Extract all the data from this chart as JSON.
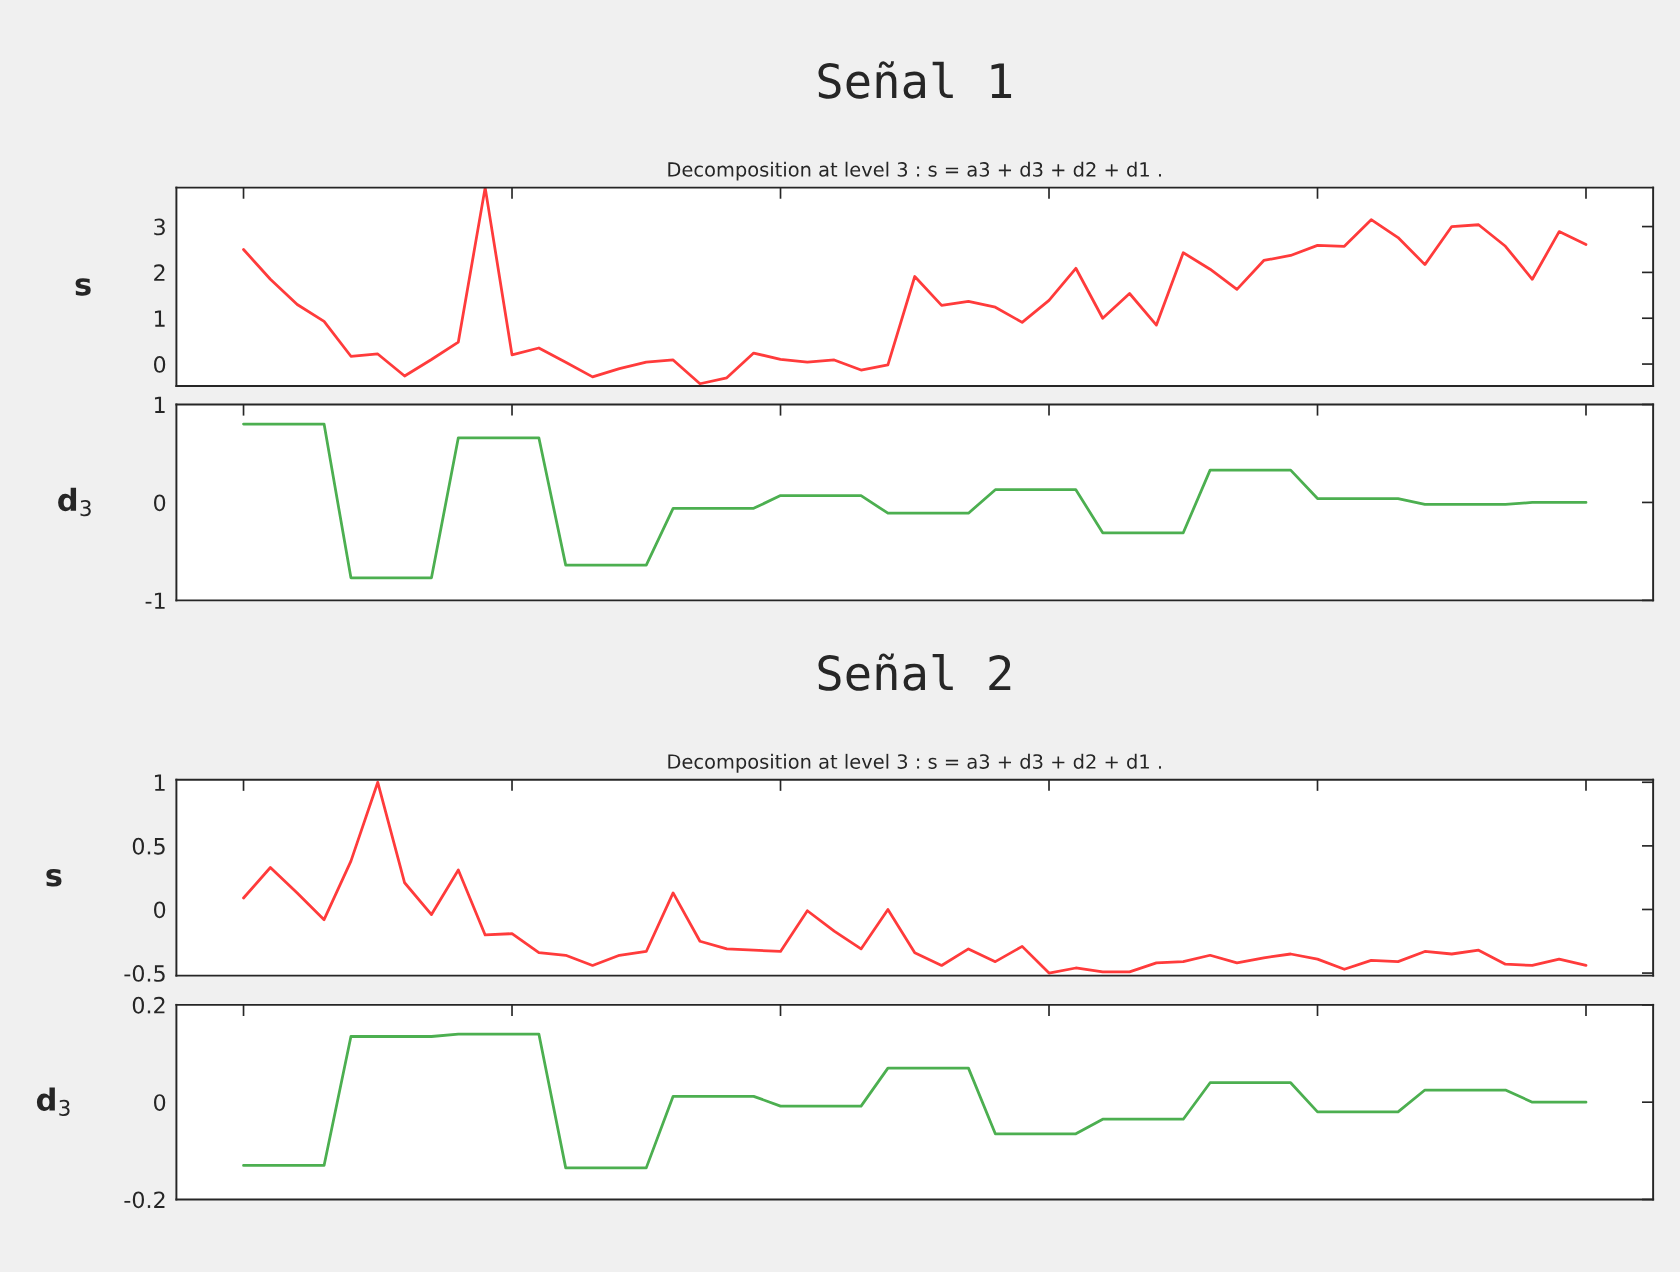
{
  "chart_data": [
    {
      "type": "line",
      "title": "Señal 1",
      "subtitle": "Decomposition at level 3 : s = a3 + d3 + d2 + d1 .",
      "ylabel": "s",
      "categories": [
        null,
        null,
        null,
        null,
        null,
        null,
        null,
        null,
        null,
        null,
        null,
        null,
        null,
        null,
        null,
        null,
        null,
        null,
        null,
        null,
        null,
        null,
        null,
        null,
        null,
        null,
        null,
        null,
        null,
        null,
        null,
        null,
        null,
        null,
        null,
        null,
        null,
        null,
        null,
        null,
        null,
        null,
        null,
        null,
        null,
        null,
        null,
        null,
        null,
        null,
        null
      ],
      "series": [
        {
          "color": "#ff3b3b",
          "values": [
            2.5,
            1.85,
            1.3,
            0.93,
            0.17,
            0.22,
            -0.26,
            0.1,
            0.48,
            3.85,
            0.2,
            0.35,
            0.04,
            -0.28,
            -0.1,
            0.04,
            0.09,
            -0.43,
            -0.3,
            0.24,
            0.1,
            0.04,
            0.09,
            -0.13,
            -0.02,
            1.91,
            1.28,
            1.37,
            1.24,
            0.91,
            1.39,
            2.09,
            1.0,
            1.54,
            0.85,
            2.43,
            2.07,
            1.63,
            2.26,
            2.37,
            2.59,
            2.57,
            3.15,
            2.76,
            2.17,
            3.0,
            3.04,
            2.57,
            1.85,
            2.89,
            2.61
          ]
        }
      ],
      "ylim": [
        -0.48,
        3.85
      ],
      "yticks": [
        0,
        1,
        2,
        3
      ],
      "tick_labels": "y",
      "grid": false,
      "legend": false
    },
    {
      "type": "line",
      "ylabel": "d$_{3}$",
      "categories": [
        null,
        null,
        null,
        null,
        null,
        null,
        null,
        null,
        null,
        null,
        null,
        null,
        null,
        null,
        null,
        null,
        null,
        null,
        null,
        null,
        null,
        null,
        null,
        null,
        null,
        null,
        null,
        null,
        null,
        null,
        null,
        null,
        null,
        null,
        null,
        null,
        null,
        null,
        null,
        null,
        null,
        null,
        null,
        null,
        null,
        null,
        null,
        null,
        null,
        null,
        null
      ],
      "series": [
        {
          "color": "#4caf50",
          "values": [
            0.8,
            0.8,
            0.8,
            0.8,
            -0.77,
            -0.77,
            -0.77,
            -0.77,
            0.66,
            0.66,
            0.66,
            0.66,
            -0.64,
            -0.64,
            -0.64,
            -0.64,
            -0.06,
            -0.06,
            -0.06,
            -0.06,
            0.07,
            0.07,
            0.07,
            0.07,
            -0.11,
            -0.11,
            -0.11,
            -0.11,
            0.13,
            0.13,
            0.13,
            0.13,
            -0.31,
            -0.31,
            -0.31,
            -0.31,
            0.33,
            0.33,
            0.33,
            0.33,
            0.04,
            0.04,
            0.04,
            0.04,
            -0.02,
            -0.02,
            -0.02,
            -0.02,
            0.0,
            0.0,
            0.0
          ]
        }
      ],
      "ylim": [
        -1,
        1
      ],
      "yticks": [
        -1,
        0,
        1
      ],
      "tick_labels": "y",
      "grid": false,
      "legend": false
    },
    {
      "type": "line",
      "title": "Señal 2",
      "subtitle": "Decomposition at level 3 : s = a3 + d3 + d2 + d1 .",
      "ylabel": "s",
      "categories": [
        null,
        null,
        null,
        null,
        null,
        null,
        null,
        null,
        null,
        null,
        null,
        null,
        null,
        null,
        null,
        null,
        null,
        null,
        null,
        null,
        null,
        null,
        null,
        null,
        null,
        null,
        null,
        null,
        null,
        null,
        null,
        null,
        null,
        null,
        null,
        null,
        null,
        null,
        null,
        null,
        null,
        null,
        null,
        null,
        null,
        null,
        null,
        null,
        null,
        null,
        null
      ],
      "series": [
        {
          "color": "#ff3b3b",
          "values": [
            0.09,
            0.33,
            0.13,
            -0.08,
            0.38,
            1.0,
            0.21,
            -0.04,
            0.31,
            -0.2,
            -0.19,
            -0.34,
            -0.36,
            -0.44,
            -0.36,
            -0.33,
            0.13,
            -0.25,
            -0.31,
            -0.32,
            -0.33,
            -0.01,
            -0.17,
            -0.31,
            0.0,
            -0.34,
            -0.44,
            -0.31,
            -0.41,
            -0.29,
            -0.5,
            -0.46,
            -0.49,
            -0.49,
            -0.42,
            -0.41,
            -0.36,
            -0.42,
            -0.38,
            -0.35,
            -0.39,
            -0.47,
            -0.4,
            -0.41,
            -0.33,
            -0.35,
            -0.32,
            -0.43,
            -0.44,
            -0.39,
            -0.44
          ]
        }
      ],
      "ylim": [
        -0.52,
        1.02
      ],
      "yticks": [
        -0.5,
        0,
        0.5,
        1
      ],
      "tick_labels": "y",
      "grid": false,
      "legend": false
    },
    {
      "type": "line",
      "ylabel": "d$_{3}$",
      "categories": [
        null,
        null,
        null,
        null,
        null,
        null,
        null,
        null,
        null,
        null,
        null,
        null,
        null,
        null,
        null,
        null,
        null,
        null,
        null,
        null,
        null,
        null,
        null,
        null,
        null,
        null,
        null,
        null,
        null,
        null,
        null,
        null,
        null,
        null,
        null,
        null,
        null,
        null,
        null,
        null,
        null,
        null,
        null,
        null,
        null,
        null,
        null,
        null,
        null,
        null,
        null
      ],
      "series": [
        {
          "color": "#4caf50",
          "values": [
            -0.13,
            -0.13,
            -0.13,
            -0.13,
            0.135,
            0.135,
            0.135,
            0.135,
            0.14,
            0.14,
            0.14,
            0.14,
            -0.135,
            -0.135,
            -0.135,
            -0.135,
            0.012,
            0.012,
            0.012,
            0.012,
            -0.008,
            -0.008,
            -0.008,
            -0.008,
            0.07,
            0.07,
            0.07,
            0.07,
            -0.065,
            -0.065,
            -0.065,
            -0.065,
            -0.035,
            -0.035,
            -0.035,
            -0.035,
            0.04,
            0.04,
            0.04,
            0.04,
            -0.02,
            -0.02,
            -0.02,
            -0.02,
            0.025,
            0.025,
            0.025,
            0.025,
            0.0,
            0.0,
            0.0
          ]
        }
      ],
      "ylim": [
        -0.2,
        0.2
      ],
      "yticks": [
        0.2,
        0,
        -0.2
      ],
      "tick_labels": "y",
      "grid": false,
      "legend": false
    }
  ]
}
